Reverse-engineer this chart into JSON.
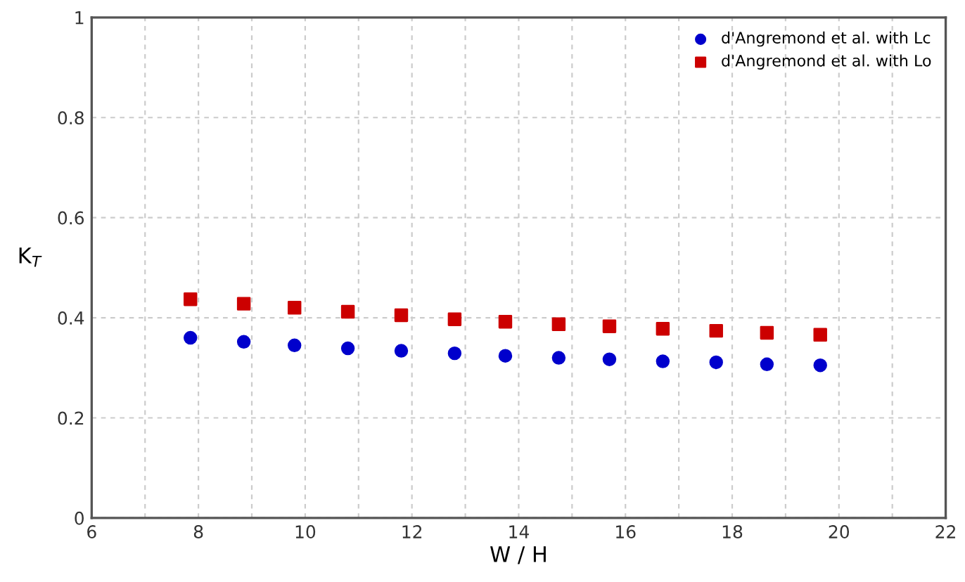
{
  "chart_data": {
    "type": "scatter",
    "xlabel": "W / H",
    "ylabel": "K$_{T}$",
    "xlim": [
      6,
      22
    ],
    "ylim": [
      0,
      1
    ],
    "xticks": [
      6,
      {
        "value": 7,
        "label": null
      },
      8,
      {
        "value": 9,
        "label": null
      },
      10,
      {
        "value": 11,
        "label": null
      },
      12,
      {
        "value": 13,
        "label": null
      },
      14,
      {
        "value": 15,
        "label": null
      },
      16,
      {
        "value": 17,
        "label": null
      },
      18,
      {
        "value": 19,
        "label": null
      },
      20,
      {
        "value": 21,
        "label": null
      },
      22
    ],
    "yticks": [
      0,
      0.2,
      0.4,
      0.6,
      0.8,
      1
    ],
    "grid": true,
    "legend": "top right",
    "series": [
      {
        "name": "d'Angremond et al. with Lc",
        "color": "#0000cc",
        "marker": "circle",
        "x": [
          7.85,
          8.85,
          9.8,
          10.8,
          11.8,
          12.8,
          13.75,
          14.75,
          15.7,
          16.7,
          17.7,
          18.65,
          19.65
        ],
        "values": [
          0.36,
          0.352,
          0.345,
          0.339,
          0.334,
          0.329,
          0.324,
          0.32,
          0.317,
          0.313,
          0.311,
          0.307,
          0.305
        ]
      },
      {
        "name": "d'Angremond et al. with Lo",
        "color": "#cc0000",
        "marker": "square",
        "x": [
          7.85,
          8.85,
          9.8,
          10.8,
          11.8,
          12.8,
          13.75,
          14.75,
          15.7,
          16.7,
          17.7,
          18.65,
          19.65
        ],
        "values": [
          0.437,
          0.428,
          0.42,
          0.412,
          0.405,
          0.397,
          0.392,
          0.387,
          0.383,
          0.378,
          0.374,
          0.37,
          0.366
        ]
      }
    ]
  }
}
